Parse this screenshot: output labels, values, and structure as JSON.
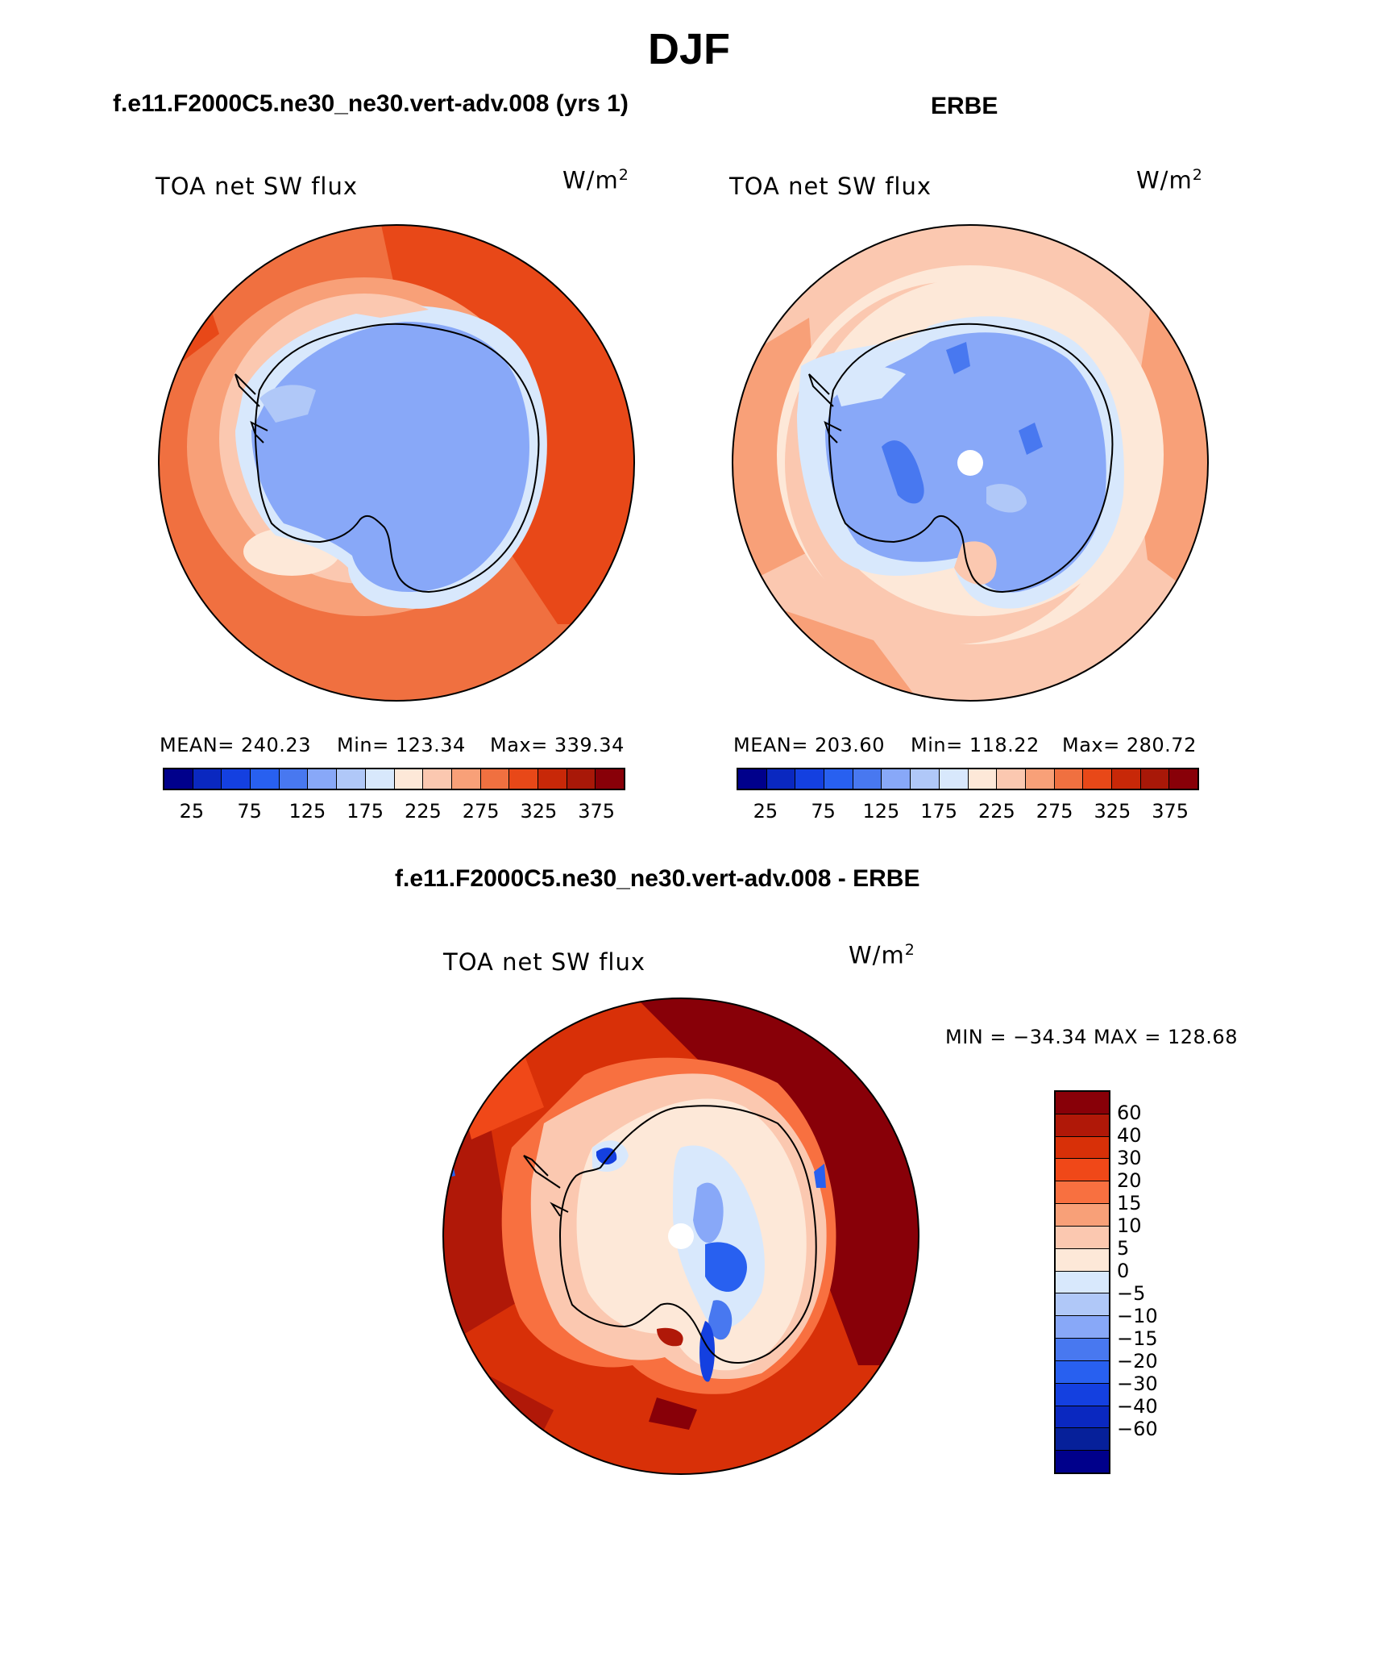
{
  "season": "DJF",
  "panels": {
    "model": {
      "title": "f.e11.F2000C5.ne30_ne30.vert-adv.008 (yrs 1)",
      "variable": "TOA net SW flux",
      "units_base": "W/m",
      "units_exp": "2",
      "mean": "MEAN= 240.23",
      "min": "Min= 123.34",
      "max": "Max= 339.34"
    },
    "obs": {
      "title": "ERBE",
      "variable": "TOA net SW flux",
      "units_base": "W/m",
      "units_exp": "2",
      "mean": "MEAN= 203.60",
      "min": "Min= 118.22",
      "max": "Max= 280.72"
    },
    "diff": {
      "title": "f.e11.F2000C5.ne30_ne30.vert-adv.008 - ERBE",
      "variable": "TOA net SW flux",
      "units_base": "W/m",
      "units_exp": "2",
      "minmax": "MIN = −34.34 MAX = 128.68"
    }
  },
  "colorbars": {
    "abs": {
      "colors": [
        "#00008b",
        "#0a28c0",
        "#1440e0",
        "#2860f0",
        "#4878f0",
        "#88a8f8",
        "#b0c8f8",
        "#d8e8fc",
        "#fde8d8",
        "#fbc8b0",
        "#f8a078",
        "#f07040",
        "#e84818",
        "#c82808",
        "#a81808",
        "#880008"
      ],
      "labels": [
        "25",
        "75",
        "125",
        "175",
        "225",
        "275",
        "325",
        "375"
      ]
    },
    "diff": {
      "colors": [
        "#880008",
        "#b01808",
        "#d83008",
        "#f04818",
        "#f87040",
        "#f8a078",
        "#fbc8b0",
        "#fde8d8",
        "#d8e8fc",
        "#b0c8f8",
        "#88a8f8",
        "#4878f0",
        "#2860f0",
        "#1440e0",
        "#0a28c0",
        "#06209a",
        "#00008b"
      ],
      "labels": [
        "60",
        "40",
        "30",
        "20",
        "15",
        "10",
        "5",
        "0",
        "−5",
        "−10",
        "−15",
        "−20",
        "−30",
        "−40",
        "−60"
      ]
    }
  }
}
